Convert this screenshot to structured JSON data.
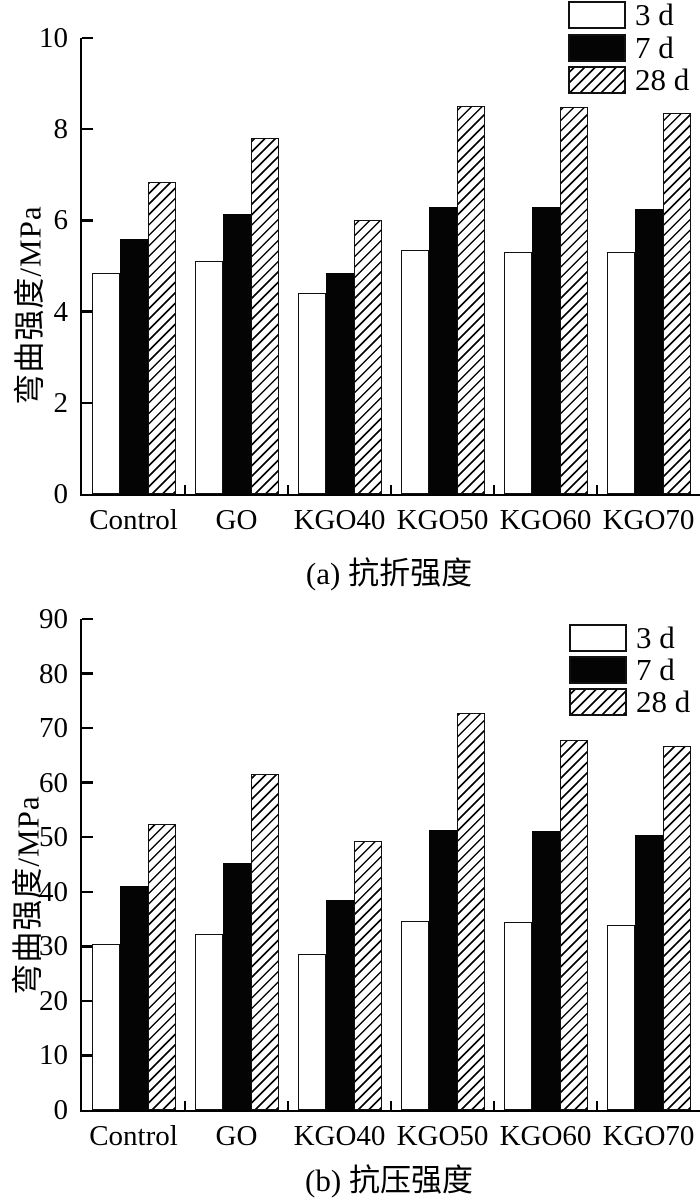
{
  "figure": {
    "description_labels": {
      "series": [
        "3 d",
        "7 d",
        "28 d"
      ],
      "categories": [
        "Control",
        "GO",
        "KGO40",
        "KGO50",
        "KGO60",
        "KGO70"
      ]
    },
    "colors": {
      "background": "#ffffff",
      "axis": "#000000",
      "text": "#000000",
      "bar_3d_fill": "#ffffff",
      "bar_7d_fill": "#040404",
      "bar_28d_hatch": "#000000"
    }
  },
  "chart_data": [
    {
      "type": "bar",
      "title": "(a) 抗折强度",
      "xlabel": "",
      "ylabel": "弯曲强度/MPa",
      "ylim": [
        0,
        10
      ],
      "ytick_step": 2,
      "grid": false,
      "legend_position": "top-right",
      "categories": [
        "Control",
        "GO",
        "KGO40",
        "KGO50",
        "KGO60",
        "KGO70"
      ],
      "series": [
        {
          "name": "3 d",
          "style": "white",
          "values": [
            4.85,
            5.1,
            4.4,
            5.35,
            5.3,
            5.3
          ]
        },
        {
          "name": "7 d",
          "style": "black",
          "values": [
            5.6,
            6.15,
            4.85,
            6.3,
            6.3,
            6.25
          ]
        },
        {
          "name": "28 d",
          "style": "hatch",
          "values": [
            6.85,
            7.8,
            6.0,
            8.5,
            8.48,
            8.35
          ]
        }
      ]
    },
    {
      "type": "bar",
      "title": "(b) 抗压强度",
      "xlabel": "",
      "ylabel": "弯曲强度/MPa",
      "ylim": [
        0,
        90
      ],
      "ytick_step": 10,
      "grid": false,
      "legend_position": "top-right",
      "categories": [
        "Control",
        "GO",
        "KGO40",
        "KGO50",
        "KGO60",
        "KGO70"
      ],
      "series": [
        {
          "name": "3 d",
          "style": "white",
          "values": [
            30.5,
            32.3,
            28.6,
            34.6,
            34.5,
            34.0
          ]
        },
        {
          "name": "7 d",
          "style": "black",
          "values": [
            41.0,
            45.3,
            38.5,
            51.4,
            51.2,
            50.5
          ]
        },
        {
          "name": "28 d",
          "style": "hatch",
          "values": [
            52.5,
            61.5,
            49.4,
            72.7,
            67.8,
            66.8
          ]
        }
      ]
    }
  ]
}
